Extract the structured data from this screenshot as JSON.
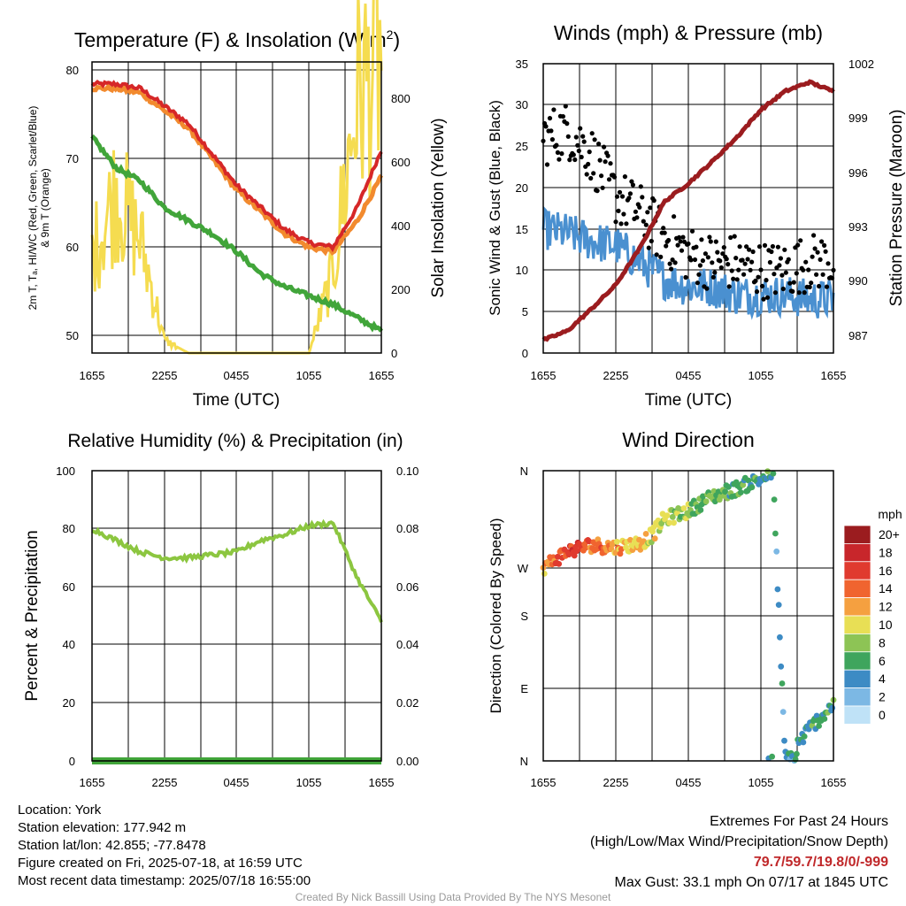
{
  "x_ticks": [
    "1655",
    "2255",
    "0455",
    "1055",
    "1655"
  ],
  "panels": {
    "temp": {
      "title_main": "Temperature (F) & Insolation (W/m",
      "title_sup": "2",
      "title_end": ")",
      "xlabel": "Time (UTC)",
      "ylabel_line1": "2m T, Tₐ, HI/WC (Red, Green, Scarlet/Blue)",
      "ylabel_line2": "& 9m T (Orange)",
      "y2label": "Solar Insolation (Yellow)",
      "y_ticks": [
        "80",
        "70",
        "60",
        "50"
      ],
      "y2_ticks": [
        "800",
        "600",
        "400",
        "200",
        "0"
      ]
    },
    "wind": {
      "title": "Winds (mph) & Pressure (mb)",
      "xlabel": "Time (UTC)",
      "ylabel": "Sonic Wind & Gust (Blue, Black)",
      "y2label": "Station Pressure (Maroon)",
      "y_ticks": [
        "35",
        "30",
        "25",
        "20",
        "15",
        "10",
        "5",
        "0"
      ],
      "y2_ticks": [
        "1002",
        "999",
        "996",
        "993",
        "990",
        "987"
      ]
    },
    "rh": {
      "title": "Relative Humidity (%) & Precipitation (in)",
      "ylabel": "Percent & Precipitation",
      "y_ticks": [
        "100",
        "80",
        "60",
        "40",
        "20",
        "0"
      ],
      "y2_ticks": [
        "0.10",
        "0.08",
        "0.06",
        "0.04",
        "0.02",
        "0.00"
      ]
    },
    "dir": {
      "title": "Wind Direction",
      "ylabel": "Direction (Colored By Speed)",
      "y_ticks": [
        "N",
        "W",
        "S",
        "E",
        "N"
      ],
      "legend_title": "mph",
      "legend_labels": [
        "20+",
        "18",
        "16",
        "14",
        "12",
        "10",
        "8",
        "6",
        "4",
        "2",
        "0"
      ],
      "legend_colors": [
        "#9b1c1f",
        "#c8262b",
        "#e03a2f",
        "#f0642f",
        "#f5a040",
        "#e8df55",
        "#8dc455",
        "#3fa55d",
        "#3d8bc4",
        "#7cb8e4",
        "#bfe2f7"
      ]
    }
  },
  "info": {
    "location": "Location: York",
    "elevation": "Station elevation: 177.942 m",
    "latlon": "Station lat/lon: 42.855; -77.8478",
    "created": "Figure created on Fri, 2025-07-18, at 16:59 UTC",
    "recent": "Most recent data timestamp: 2025/07/18 16:55:00"
  },
  "extremes": {
    "line1": "Extremes For Past 24 Hours",
    "line2": "(High/Low/Max Wind/Precipitation/Snow Depth)",
    "values": "79.7/59.7/19.8/0/-999",
    "gust": "Max Gust: 33.1 mph On 07/17 at 1845 UTC"
  },
  "credit": "Created By Nick Bassill Using Data Provided By The NYS Mesonet",
  "chart_data": [
    {
      "type": "line",
      "title": "Temperature (F) & Insolation (W/m2)",
      "xlabel": "Time (UTC)",
      "x": [
        0,
        2,
        4,
        6,
        8,
        10,
        12,
        14,
        16,
        18,
        20,
        22,
        24
      ],
      "ylim": [
        48,
        81
      ],
      "y2lim": [
        0,
        900
      ],
      "series": [
        {
          "name": "2m T",
          "color": "#d62728",
          "values": [
            78.5,
            78.5,
            78.0,
            76.0,
            74.0,
            70.5,
            67.0,
            64.5,
            62.0,
            60.5,
            60.0,
            64.5,
            71.0
          ]
        },
        {
          "name": "9m T",
          "color": "#f28a2e",
          "values": [
            78.0,
            78.0,
            77.5,
            75.5,
            73.5,
            70.0,
            66.5,
            64.0,
            61.5,
            60.0,
            59.5,
            63.0,
            68.0
          ]
        },
        {
          "name": "Td",
          "color": "#41a53a",
          "values": [
            72.5,
            69.0,
            67.5,
            64.5,
            63.0,
            61.5,
            59.5,
            57.0,
            55.5,
            54.5,
            53.5,
            52.0,
            50.5
          ]
        },
        {
          "name": "Solar Insolation",
          "axis": "y2",
          "color": "#f5dc50",
          "values": [
            300,
            500,
            350,
            40,
            0,
            0,
            0,
            0,
            0,
            0,
            250,
            800,
            900
          ]
        }
      ]
    },
    {
      "type": "line",
      "title": "Winds (mph) & Pressure (mb)",
      "xlabel": "Time (UTC)",
      "x": [
        0,
        2,
        4,
        6,
        8,
        10,
        12,
        14,
        16,
        18,
        20,
        22,
        24
      ],
      "ylim": [
        0,
        35
      ],
      "y2lim": [
        986.3,
        1002
      ],
      "series": [
        {
          "name": "Sonic Wind",
          "color": "#4a90d0",
          "values": [
            15,
            14.5,
            13.5,
            13,
            11,
            9,
            8,
            8,
            7,
            7,
            7,
            6.5,
            6.5
          ]
        },
        {
          "name": "Gust",
          "color": "#000000",
          "values": [
            26,
            27,
            24,
            19,
            17,
            14,
            12,
            11,
            11,
            10,
            10,
            11,
            11
          ]
        },
        {
          "name": "Station Pressure",
          "axis": "y2",
          "color": "#9b1c1f",
          "values": [
            987.0,
            987.5,
            988.7,
            990.0,
            992.0,
            994.5,
            995.5,
            996.7,
            998.0,
            999.5,
            1000.5,
            1001.0,
            1000.5
          ]
        }
      ]
    },
    {
      "type": "line",
      "title": "Relative Humidity (%) & Precipitation (in)",
      "ylabel": "Percent & Precipitation",
      "x": [
        0,
        2,
        4,
        6,
        8,
        10,
        12,
        14,
        16,
        18,
        20,
        22,
        24
      ],
      "ylim": [
        0,
        100
      ],
      "y2lim": [
        0,
        0.1
      ],
      "series": [
        {
          "name": "RH",
          "color": "#8cc640",
          "values": [
            80,
            76,
            72,
            70,
            70,
            71,
            72,
            76,
            78,
            81,
            82,
            63,
            48
          ]
        },
        {
          "name": "Precipitation",
          "axis": "y2",
          "color": "#41a53a",
          "values": [
            0,
            0,
            0,
            0,
            0,
            0,
            0,
            0,
            0,
            0,
            0,
            0,
            0
          ]
        }
      ]
    },
    {
      "type": "scatter",
      "title": "Wind Direction",
      "ylabel": "Direction (Colored By Speed)",
      "ylim": [
        0,
        360
      ],
      "x_hours": [
        0,
        2,
        4,
        6,
        8,
        9,
        10,
        12,
        13,
        14,
        16,
        18,
        19,
        20,
        22,
        24
      ],
      "direction_deg": [
        240,
        260,
        268,
        265,
        270,
        280,
        300,
        310,
        320,
        328,
        338,
        350,
        358,
        0,
        40,
        70
      ],
      "speed_mph": [
        12,
        16,
        14,
        12,
        11,
        10,
        9,
        8,
        7,
        7,
        6,
        6,
        5,
        4,
        5,
        6
      ]
    }
  ]
}
